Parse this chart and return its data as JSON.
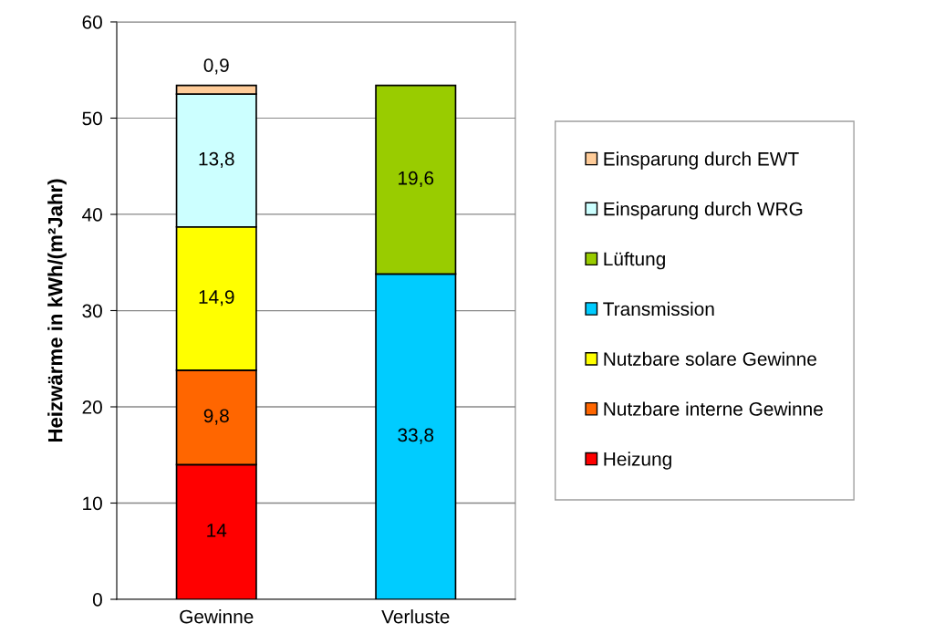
{
  "chart_data": {
    "type": "bar",
    "stacked": true,
    "ylabel": "Heizwärme in kWh/(m²Jahr)",
    "categories": [
      "Gewinne",
      "Verluste"
    ],
    "series": [
      {
        "name": "Heizung",
        "color": "#ff0000",
        "values": [
          14,
          null
        ],
        "value_labels": [
          "14",
          null
        ]
      },
      {
        "name": "Nutzbare interne Gewinne",
        "color": "#ff6600",
        "values": [
          9.8,
          null
        ],
        "value_labels": [
          "9,8",
          null
        ]
      },
      {
        "name": "Nutzbare solare Gewinne",
        "color": "#ffff00",
        "values": [
          14.9,
          null
        ],
        "value_labels": [
          "14,9",
          null
        ]
      },
      {
        "name": "Transmission",
        "color": "#00ccff",
        "values": [
          null,
          33.8
        ],
        "value_labels": [
          null,
          "33,8"
        ]
      },
      {
        "name": "Lüftung",
        "color": "#99cc00",
        "values": [
          null,
          19.6
        ],
        "value_labels": [
          null,
          "19,6"
        ]
      },
      {
        "name": "Einsparung durch WRG",
        "color": "#ccffff",
        "values": [
          13.8,
          null
        ],
        "value_labels": [
          "13,8",
          null
        ]
      },
      {
        "name": "Einsparung durch EWT",
        "color": "#ffcc99",
        "values": [
          0.9,
          null
        ],
        "value_labels": [
          "0,9",
          null
        ]
      }
    ],
    "ylim": [
      0,
      60
    ],
    "yticks": [
      0,
      10,
      20,
      30,
      40,
      50,
      60
    ],
    "grid": "y",
    "legend": "right"
  }
}
